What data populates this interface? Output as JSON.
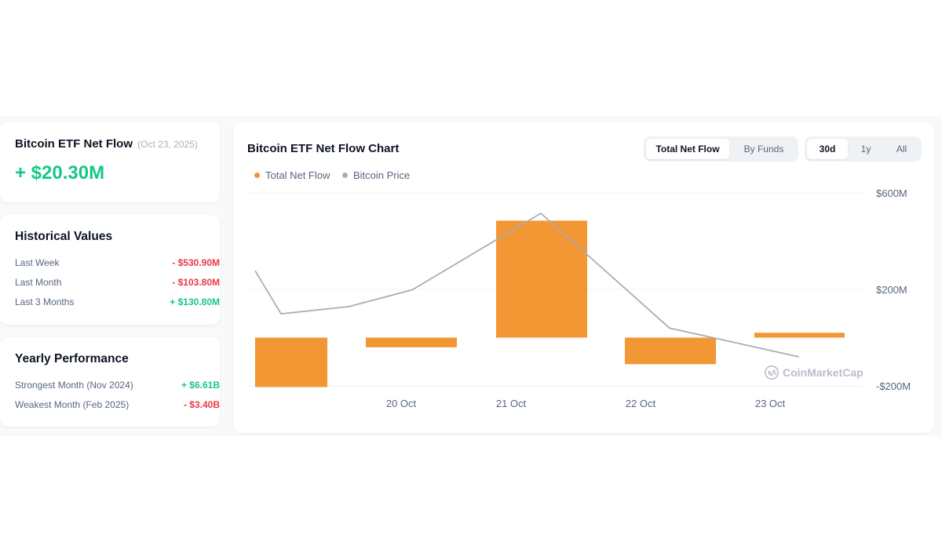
{
  "netflow": {
    "title": "Bitcoin ETF Net Flow",
    "date": "(Oct 23, 2025)",
    "value": "+ $20.30M"
  },
  "historical": {
    "title": "Historical Values",
    "rows": [
      {
        "label": "Last Week",
        "value": "- $530.90M",
        "trend": "negative"
      },
      {
        "label": "Last Month",
        "value": "- $103.80M",
        "trend": "negative"
      },
      {
        "label": "Last 3 Months",
        "value": "+ $130.80M",
        "trend": "positive"
      }
    ]
  },
  "yearly": {
    "title": "Yearly Performance",
    "rows": [
      {
        "label": "Strongest Month (Nov 2024)",
        "value": "+ $6.61B",
        "trend": "positive"
      },
      {
        "label": "Weakest Month (Feb 2025)",
        "value": "- $3.40B",
        "trend": "negative"
      }
    ]
  },
  "chart_panel": {
    "title": "Bitcoin ETF Net Flow Chart",
    "view_tabs": [
      {
        "label": "Total Net Flow",
        "active": true
      },
      {
        "label": "By Funds",
        "active": false
      }
    ],
    "range_tabs": [
      {
        "label": "30d",
        "active": true
      },
      {
        "label": "1y",
        "active": false
      },
      {
        "label": "All",
        "active": false
      }
    ],
    "watermark": "CoinMarketCap"
  },
  "colors": {
    "positive": "#16c784",
    "negative": "#ea3943",
    "bar": "#f39634",
    "price_line": "#a8aeb8"
  },
  "chart_data": {
    "type": "bar",
    "title": "Bitcoin ETF Net Flow Chart",
    "legend": [
      "Total Net Flow",
      "Bitcoin Price"
    ],
    "legend_position": "top-left",
    "x_tick_labels": [
      "20 Oct",
      "21 Oct",
      "22 Oct",
      "23 Oct"
    ],
    "y_tick_labels": [
      "$600M",
      "$200M",
      "-$200M"
    ],
    "ylim": [
      -200,
      600
    ],
    "grid": true,
    "series": [
      {
        "name": "Total Net Flow",
        "type": "bar",
        "categories": [
          "",
          "20 Oct",
          "21 Oct",
          "22 Oct",
          "23 Oct"
        ],
        "values": [
          -205,
          -40,
          485,
          -110,
          20.3
        ]
      },
      {
        "name": "Bitcoin Price",
        "type": "line",
        "note": "price axis not shown; relative values",
        "values": [
          0.76,
          0.58,
          0.61,
          0.68,
          1.0,
          0.52,
          0.46,
          0.4
        ]
      }
    ]
  }
}
